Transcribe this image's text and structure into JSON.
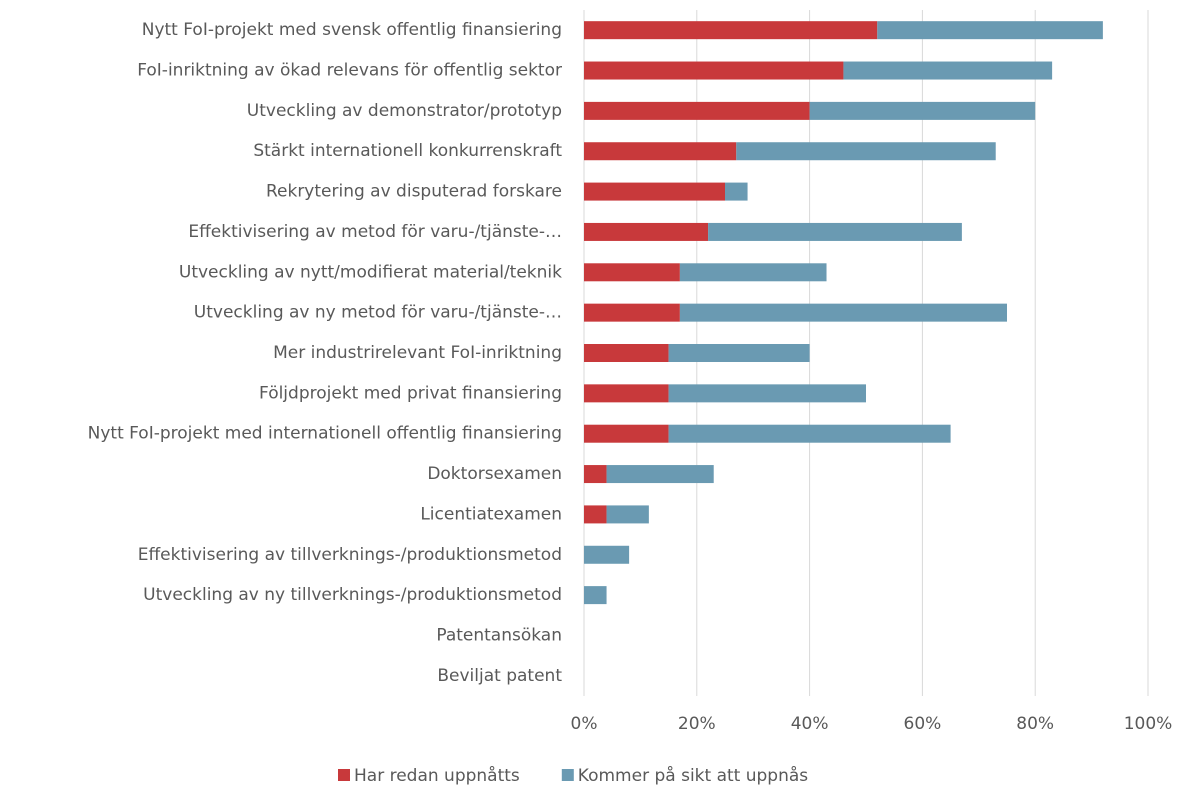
{
  "chart_data": {
    "type": "stacked-barh",
    "categories": [
      "Nytt FoI-projekt med svensk offentlig finansiering",
      "FoI-inriktning av ökad relevans för offentlig sektor",
      "Utveckling av demonstrator/prototyp",
      "Stärkt internationell konkurrenskraft",
      "Rekrytering av disputerad forskare",
      "Effektivisering av metod för varu-/tjänste-…",
      "Utveckling av nytt/modifierat material/teknik",
      "Utveckling av ny metod för varu-/tjänste-…",
      "Mer industrirelevant FoI-inriktning",
      "Följdprojekt med privat finansiering",
      "Nytt FoI-projekt med internationell offentlig finansiering",
      "Doktorsexamen",
      "Licentiatexamen",
      "Effektivisering av tillverknings-/produktionsmetod",
      "Utveckling av ny tillverknings-/produktionsmetod",
      "Patentansökan",
      "Beviljat patent"
    ],
    "series": [
      {
        "name": "Har redan uppnåtts",
        "color": "#c8393b",
        "values": [
          52,
          46,
          40,
          27,
          25,
          22,
          17,
          17,
          15,
          15,
          15,
          4,
          4,
          0,
          0,
          0,
          0
        ]
      },
      {
        "name": "Kommer på sikt att uppnås",
        "color": "#6a9ab2",
        "values": [
          40,
          37,
          40,
          46,
          4,
          45,
          26,
          58,
          25,
          35,
          50,
          19,
          7.5,
          8,
          4,
          0,
          0
        ]
      }
    ],
    "xlim": [
      0,
      100
    ],
    "xticks": [
      {
        "value": 0,
        "label": "0%"
      },
      {
        "value": 20,
        "label": "20%"
      },
      {
        "value": 40,
        "label": "40%"
      },
      {
        "value": 60,
        "label": "60%"
      },
      {
        "value": 80,
        "label": "80%"
      },
      {
        "value": 100,
        "label": "100%"
      }
    ],
    "grid": true,
    "legend": "bottom"
  }
}
